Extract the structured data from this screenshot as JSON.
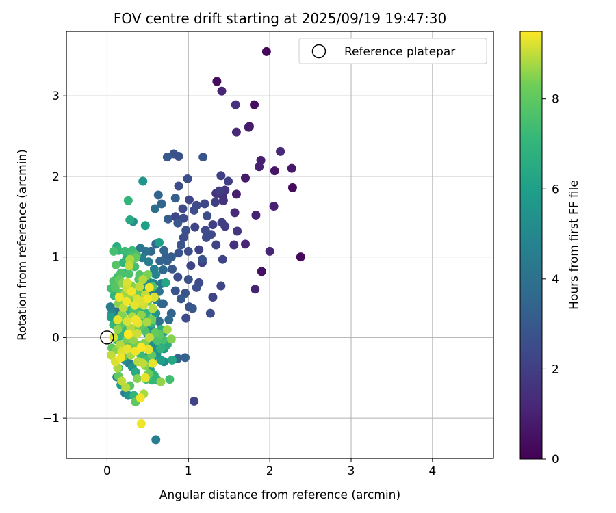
{
  "chart_data": {
    "type": "scatter",
    "title": "FOV centre drift starting at 2025/09/19 19:47:30",
    "xlabel": "Angular distance from reference (arcmin)",
    "ylabel": "Rotation from reference (arcmin)",
    "xlim": [
      -0.5,
      4.75
    ],
    "ylim": [
      -1.5,
      3.8
    ],
    "xticks": [
      0,
      1,
      2,
      3,
      4
    ],
    "yticks": [
      -1,
      0,
      1,
      2,
      3
    ],
    "xtick_labels": [
      "0",
      "1",
      "2",
      "3",
      "4"
    ],
    "ytick_labels": [
      "−1",
      "0",
      "1",
      "2",
      "3"
    ],
    "grid": true,
    "legend": {
      "position": "top-right",
      "label": "Reference platepar"
    },
    "reference_point": {
      "x": 0,
      "y": 0
    },
    "colorbar": {
      "label": "Hours from first FF file",
      "colormap": "viridis",
      "min": 0,
      "max": 9.5,
      "ticks": [
        0,
        2,
        4,
        6,
        8
      ],
      "tick_labels": [
        "0",
        "2",
        "4",
        "6",
        "8"
      ]
    },
    "points": [
      [
        1.96,
        3.55,
        0.2
      ],
      [
        1.35,
        3.18,
        0.3
      ],
      [
        1.41,
        3.06,
        1.1
      ],
      [
        1.58,
        2.89,
        1.6
      ],
      [
        1.81,
        2.89,
        0.4
      ],
      [
        1.75,
        2.62,
        0.5
      ],
      [
        1.74,
        2.61,
        0.8
      ],
      [
        1.59,
        2.55,
        1.2
      ],
      [
        2.13,
        2.31,
        1.2
      ],
      [
        1.89,
        2.2,
        0.9
      ],
      [
        2.27,
        2.1,
        0.7
      ],
      [
        1.87,
        2.12,
        1.0
      ],
      [
        2.06,
        2.07,
        0.6
      ],
      [
        1.7,
        1.98,
        0.8
      ],
      [
        2.28,
        1.86,
        0.3
      ],
      [
        2.05,
        1.63,
        1.0
      ],
      [
        1.83,
        1.52,
        1.0
      ],
      [
        1.57,
        1.55,
        1.3
      ],
      [
        1.59,
        1.78,
        0.9
      ],
      [
        1.4,
        2.01,
        2.1
      ],
      [
        1.49,
        1.94,
        2.0
      ],
      [
        1.45,
        1.83,
        1.7
      ],
      [
        1.42,
        1.76,
        1.5
      ],
      [
        1.43,
        1.7,
        1.6
      ],
      [
        1.34,
        1.79,
        1.6
      ],
      [
        1.38,
        1.82,
        2.0
      ],
      [
        1.33,
        1.68,
        2.0
      ],
      [
        1.2,
        1.66,
        2.3
      ],
      [
        1.23,
        1.51,
        2.5
      ],
      [
        1.18,
        2.24,
        2.8
      ],
      [
        0.88,
        2.25,
        2.7
      ],
      [
        0.82,
        2.28,
        2.7
      ],
      [
        0.74,
        2.24,
        3.0
      ],
      [
        0.99,
        1.97,
        2.6
      ],
      [
        0.88,
        1.88,
        2.5
      ],
      [
        0.93,
        1.6,
        2.4
      ],
      [
        1.01,
        1.71,
        2.3
      ],
      [
        1.1,
        1.64,
        2.4
      ],
      [
        1.07,
        1.58,
        2.5
      ],
      [
        0.94,
        1.48,
        2.5
      ],
      [
        0.84,
        1.5,
        2.3
      ],
      [
        0.75,
        1.47,
        3.1
      ],
      [
        0.84,
        1.73,
        3.2
      ],
      [
        0.67,
        1.66,
        3.4
      ],
      [
        0.63,
        1.77,
        3.5
      ],
      [
        0.59,
        1.6,
        3.9
      ],
      [
        0.87,
        1.42,
        2.9
      ],
      [
        0.97,
        1.33,
        2.7
      ],
      [
        1.21,
        1.33,
        2.4
      ],
      [
        1.3,
        1.4,
        2.1
      ],
      [
        1.28,
        1.28,
        2.4
      ],
      [
        1.34,
        1.15,
        2.2
      ],
      [
        1.45,
        1.38,
        1.9
      ],
      [
        1.41,
        1.43,
        2.0
      ],
      [
        1.6,
        1.32,
        1.7
      ],
      [
        1.56,
        1.15,
        1.5
      ],
      [
        1.7,
        1.16,
        1.1
      ],
      [
        2.0,
        1.07,
        1.1
      ],
      [
        2.38,
        1.0,
        0.2
      ],
      [
        1.9,
        0.82,
        0.5
      ],
      [
        1.82,
        0.6,
        1.0
      ],
      [
        1.42,
        0.97,
        2.2
      ],
      [
        1.4,
        0.64,
        2.3
      ],
      [
        1.3,
        0.5,
        2.2
      ],
      [
        1.27,
        0.3,
        2.5
      ],
      [
        1.17,
        0.97,
        2.7
      ],
      [
        1.13,
        0.68,
        2.4
      ],
      [
        1.1,
        0.62,
        2.6
      ],
      [
        1.0,
        0.72,
        2.7
      ],
      [
        0.96,
        0.55,
        2.8
      ],
      [
        1.01,
        0.38,
        2.7
      ],
      [
        1.05,
        0.36,
        2.9
      ],
      [
        0.97,
        0.24,
        2.4
      ],
      [
        0.91,
        0.48,
        3.0
      ],
      [
        0.84,
        0.58,
        2.8
      ],
      [
        0.87,
        0.75,
        2.5
      ],
      [
        0.8,
        0.85,
        2.9
      ],
      [
        0.74,
        0.95,
        3.3
      ],
      [
        0.79,
        1.0,
        3.1
      ],
      [
        0.72,
        1.0,
        3.3
      ],
      [
        0.65,
        0.95,
        3.5
      ],
      [
        0.69,
        0.84,
        3.7
      ],
      [
        0.67,
        0.67,
        4.2
      ],
      [
        0.64,
        0.57,
        4.2
      ],
      [
        0.57,
        0.67,
        4.5
      ],
      [
        0.54,
        0.55,
        4.5
      ],
      [
        0.6,
        0.47,
        4.6
      ],
      [
        0.6,
        0.3,
        5.5
      ],
      [
        0.64,
        0.2,
        4.0
      ],
      [
        0.76,
        0.22,
        3.8
      ],
      [
        0.79,
        0.3,
        3.4
      ],
      [
        0.69,
        0.42,
        3.2
      ],
      [
        0.88,
        1.05,
        2.8
      ],
      [
        0.91,
        1.15,
        2.8
      ],
      [
        0.94,
        1.24,
        2.6
      ],
      [
        1.0,
        1.07,
        2.5
      ],
      [
        1.03,
        0.89,
        2.2
      ],
      [
        1.17,
        0.93,
        2.1
      ],
      [
        1.13,
        1.09,
        2.1
      ],
      [
        1.08,
        1.37,
        2.2
      ],
      [
        1.22,
        1.24,
        2.4
      ],
      [
        0.7,
        1.08,
        3.5
      ],
      [
        0.6,
        1.16,
        3.6
      ],
      [
        0.54,
        1.07,
        3.5
      ],
      [
        0.48,
        1.07,
        4.0
      ],
      [
        0.41,
        1.11,
        4.2
      ],
      [
        0.43,
        0.99,
        4.5
      ],
      [
        0.51,
        0.94,
        4.6
      ],
      [
        0.58,
        0.85,
        4.7
      ],
      [
        0.6,
        0.78,
        4.8
      ],
      [
        0.53,
        0.68,
        5.3
      ],
      [
        0.47,
        0.72,
        5.2
      ],
      [
        0.44,
        0.62,
        5.4
      ],
      [
        0.43,
        0.51,
        5.7
      ],
      [
        0.36,
        0.49,
        5.9
      ],
      [
        0.43,
        0.36,
        6.0
      ],
      [
        0.46,
        0.26,
        5.5
      ],
      [
        0.54,
        0.12,
        5.1
      ],
      [
        0.5,
        0.04,
        5.4
      ],
      [
        0.56,
        -0.1,
        5.2
      ],
      [
        0.6,
        -0.19,
        5.5
      ],
      [
        0.66,
        -0.28,
        6.0
      ],
      [
        0.64,
        -0.1,
        5.8
      ],
      [
        0.7,
        0.07,
        5.9
      ],
      [
        0.66,
        0.1,
        6.8
      ],
      [
        0.55,
        0.18,
        7.0
      ],
      [
        0.48,
        0.3,
        7.0
      ],
      [
        0.64,
        1.18,
        6.0
      ],
      [
        0.72,
        0.68,
        6.3
      ],
      [
        0.32,
        1.44,
        5.4
      ],
      [
        0.28,
        1.46,
        6.4
      ],
      [
        0.47,
        1.39,
        6.0
      ],
      [
        0.44,
        1.94,
        5.6
      ],
      [
        0.26,
        1.7,
        7.0
      ],
      [
        0.12,
        1.13,
        6.6
      ],
      [
        0.14,
        1.08,
        7.0
      ],
      [
        0.08,
        1.07,
        7.5
      ],
      [
        0.22,
        1.07,
        7.3
      ],
      [
        0.3,
        1.02,
        7.5
      ],
      [
        0.36,
        1.02,
        7.6
      ],
      [
        0.11,
        0.9,
        7.8
      ],
      [
        0.2,
        0.8,
        7.1
      ],
      [
        0.28,
        0.97,
        8.8
      ],
      [
        0.34,
        0.88,
        7.5
      ],
      [
        0.27,
        0.79,
        7.6
      ],
      [
        0.15,
        0.72,
        8.1
      ],
      [
        0.1,
        0.62,
        7.8
      ],
      [
        0.05,
        0.61,
        7.4
      ],
      [
        0.17,
        0.55,
        7.9
      ],
      [
        0.21,
        0.5,
        8.0
      ],
      [
        0.14,
        0.42,
        8.5
      ],
      [
        0.25,
        0.68,
        9.2
      ],
      [
        0.3,
        0.64,
        8.5
      ],
      [
        0.36,
        0.55,
        8.0
      ],
      [
        0.39,
        0.42,
        8.8
      ],
      [
        0.33,
        0.35,
        7.6
      ],
      [
        0.28,
        0.33,
        7.0
      ],
      [
        0.2,
        0.25,
        8.5
      ],
      [
        0.13,
        0.22,
        9.3
      ],
      [
        0.08,
        0.16,
        7.0
      ],
      [
        0.05,
        0.25,
        6.0
      ],
      [
        0.06,
        0.3,
        5.0
      ],
      [
        0.04,
        0.38,
        4.5
      ],
      [
        0.11,
        0.32,
        4.0
      ],
      [
        0.15,
        0.03,
        5.0
      ],
      [
        0.12,
        -0.03,
        7.0
      ],
      [
        0.06,
        -0.13,
        8.0
      ],
      [
        0.05,
        -0.22,
        9.0
      ],
      [
        0.12,
        -0.15,
        8.5
      ],
      [
        0.18,
        -0.18,
        9.2
      ],
      [
        0.22,
        -0.09,
        7.7
      ],
      [
        0.25,
        -0.02,
        8.4
      ],
      [
        0.28,
        0.05,
        9.0
      ],
      [
        0.35,
        0.1,
        8.2
      ],
      [
        0.38,
        0.18,
        9.3
      ],
      [
        0.42,
        0.28,
        8.6
      ],
      [
        0.45,
        0.4,
        9.1
      ],
      [
        0.5,
        0.45,
        8.0
      ],
      [
        0.47,
        0.53,
        9.0
      ],
      [
        0.52,
        0.62,
        9.4
      ],
      [
        0.44,
        0.72,
        8.9
      ],
      [
        0.4,
        0.78,
        7.8
      ],
      [
        0.49,
        0.77,
        8.3
      ],
      [
        0.56,
        0.63,
        7.7
      ],
      [
        0.58,
        0.5,
        9.2
      ],
      [
        0.4,
        0.63,
        9.0
      ],
      [
        0.3,
        0.55,
        8.7
      ],
      [
        0.24,
        0.45,
        9.4
      ],
      [
        0.2,
        0.37,
        9.0
      ],
      [
        0.18,
        0.28,
        8.5
      ],
      [
        0.35,
        0.22,
        9.4
      ],
      [
        0.42,
        0.15,
        8.0
      ],
      [
        0.47,
        0.08,
        7.6
      ],
      [
        0.52,
        0.0,
        9.0
      ],
      [
        0.46,
        -0.07,
        8.5
      ],
      [
        0.42,
        -0.12,
        9.5
      ],
      [
        0.51,
        -0.15,
        9.3
      ],
      [
        0.55,
        -0.22,
        8.0
      ],
      [
        0.49,
        -0.27,
        7.4
      ],
      [
        0.44,
        -0.32,
        9.0
      ],
      [
        0.53,
        -0.4,
        6.0
      ],
      [
        0.58,
        -0.47,
        7.0
      ],
      [
        0.48,
        -0.52,
        7.5
      ],
      [
        0.37,
        -0.51,
        8.5
      ],
      [
        0.35,
        -0.43,
        6.5
      ],
      [
        0.31,
        -0.37,
        5.5
      ],
      [
        0.27,
        -0.32,
        4.5
      ],
      [
        0.22,
        -0.28,
        5.0
      ],
      [
        0.17,
        -0.25,
        9.4
      ],
      [
        0.13,
        -0.38,
        8.8
      ],
      [
        0.1,
        -0.3,
        9.2
      ],
      [
        0.14,
        -0.48,
        8.0
      ],
      [
        0.12,
        -0.49,
        4.8
      ],
      [
        0.17,
        -0.59,
        6.0
      ],
      [
        0.22,
        -0.69,
        4.5
      ],
      [
        0.26,
        -0.72,
        5.5
      ],
      [
        0.33,
        -0.72,
        7.0
      ],
      [
        0.35,
        -0.8,
        8.0
      ],
      [
        0.45,
        -0.7,
        8.8
      ],
      [
        0.41,
        -0.75,
        9.4
      ],
      [
        0.47,
        -0.5,
        9.3
      ],
      [
        0.42,
        -1.07,
        9.4
      ],
      [
        0.6,
        -1.27,
        4.5
      ],
      [
        1.07,
        -0.79,
        2.2
      ],
      [
        0.87,
        -0.26,
        3.5
      ],
      [
        0.96,
        -0.25,
        3.3
      ],
      [
        0.8,
        -0.28,
        6.3
      ],
      [
        0.7,
        -0.3,
        5.3
      ],
      [
        0.61,
        -0.21,
        5.2
      ],
      [
        0.66,
        -0.14,
        6.9
      ],
      [
        0.79,
        -0.02,
        8.5
      ],
      [
        0.74,
        0.1,
        8.8
      ],
      [
        0.67,
        0.42,
        3.6
      ],
      [
        0.31,
        1.08,
        7.3
      ],
      [
        0.35,
        0.99,
        8.1
      ],
      [
        0.27,
        0.89,
        9.0
      ],
      [
        0.19,
        0.67,
        8.5
      ],
      [
        0.24,
        0.61,
        9.1
      ],
      [
        0.3,
        0.57,
        9.4
      ],
      [
        0.37,
        0.48,
        9.2
      ],
      [
        0.27,
        0.48,
        8.2
      ],
      [
        0.34,
        0.4,
        9.3
      ],
      [
        0.31,
        0.26,
        8.8
      ],
      [
        0.25,
        0.2,
        9.2
      ],
      [
        0.17,
        0.17,
        8.0
      ],
      [
        0.21,
        0.11,
        7.3
      ],
      [
        0.29,
        0.12,
        8.9
      ],
      [
        0.37,
        0.05,
        9.1
      ],
      [
        0.32,
        -0.03,
        8.6
      ],
      [
        0.39,
        -0.1,
        8.3
      ],
      [
        0.35,
        -0.17,
        9.4
      ],
      [
        0.29,
        -0.22,
        8.8
      ],
      [
        0.25,
        -0.14,
        9.3
      ],
      [
        0.2,
        -0.24,
        7.9
      ],
      [
        0.47,
        -0.35,
        8.5
      ],
      [
        0.56,
        -0.32,
        9.3
      ],
      [
        0.51,
        -0.45,
        8.2
      ],
      [
        0.62,
        -0.53,
        6.9
      ],
      [
        0.77,
        -0.52,
        7.4
      ],
      [
        0.66,
        -0.55,
        8.6
      ],
      [
        0.55,
        -0.53,
        7.1
      ],
      [
        0.28,
        -0.6,
        7.8
      ],
      [
        0.23,
        -0.62,
        8.9
      ],
      [
        0.18,
        -0.54,
        9.0
      ],
      [
        0.14,
        -0.38,
        6.5
      ],
      [
        0.08,
        0.0,
        9.2
      ],
      [
        0.13,
        0.1,
        8.6
      ],
      [
        0.19,
        0.02,
        7.2
      ],
      [
        0.26,
        0.04,
        9.5
      ],
      [
        0.33,
        0.32,
        5.8
      ],
      [
        0.39,
        0.72,
        7.7
      ],
      [
        0.5,
        0.78,
        8.4
      ],
      [
        0.28,
        0.93,
        8.0
      ],
      [
        0.2,
        0.93,
        7.0
      ],
      [
        0.24,
        0.98,
        6.7
      ],
      [
        0.17,
        0.8,
        7.6
      ],
      [
        0.13,
        0.75,
        7.3
      ],
      [
        0.08,
        0.7,
        7.7
      ],
      [
        0.09,
        0.52,
        7.0
      ],
      [
        0.15,
        0.5,
        9.4
      ],
      [
        0.22,
        0.54,
        8.7
      ],
      [
        0.29,
        0.45,
        8.4
      ],
      [
        0.37,
        0.33,
        7.4
      ],
      [
        0.43,
        0.22,
        6.9
      ],
      [
        0.49,
        0.19,
        8.8
      ],
      [
        0.55,
        0.22,
        8.3
      ],
      [
        0.59,
        0.06,
        8.1
      ],
      [
        0.65,
        0.04,
        7.9
      ],
      [
        0.69,
        -0.03,
        7.5
      ],
      [
        0.74,
        -0.09,
        6.5
      ],
      [
        0.7,
        -0.14,
        5.6
      ],
      [
        0.62,
        -0.04,
        7.6
      ],
      [
        0.56,
        0.36,
        8.9
      ],
      [
        0.5,
        0.48,
        9.4
      ],
      [
        0.43,
        0.45,
        9.2
      ],
      [
        0.39,
        0.57,
        8.1
      ],
      [
        0.55,
        -0.28,
        5.0
      ],
      [
        0.51,
        -0.23,
        5.8
      ],
      [
        0.41,
        -0.21,
        7.2
      ],
      [
        0.38,
        -0.3,
        8.9
      ],
      [
        0.33,
        -0.1,
        8.1
      ],
      [
        0.28,
        -0.04,
        7.4
      ],
      [
        0.16,
        -0.09,
        8.9
      ]
    ]
  }
}
